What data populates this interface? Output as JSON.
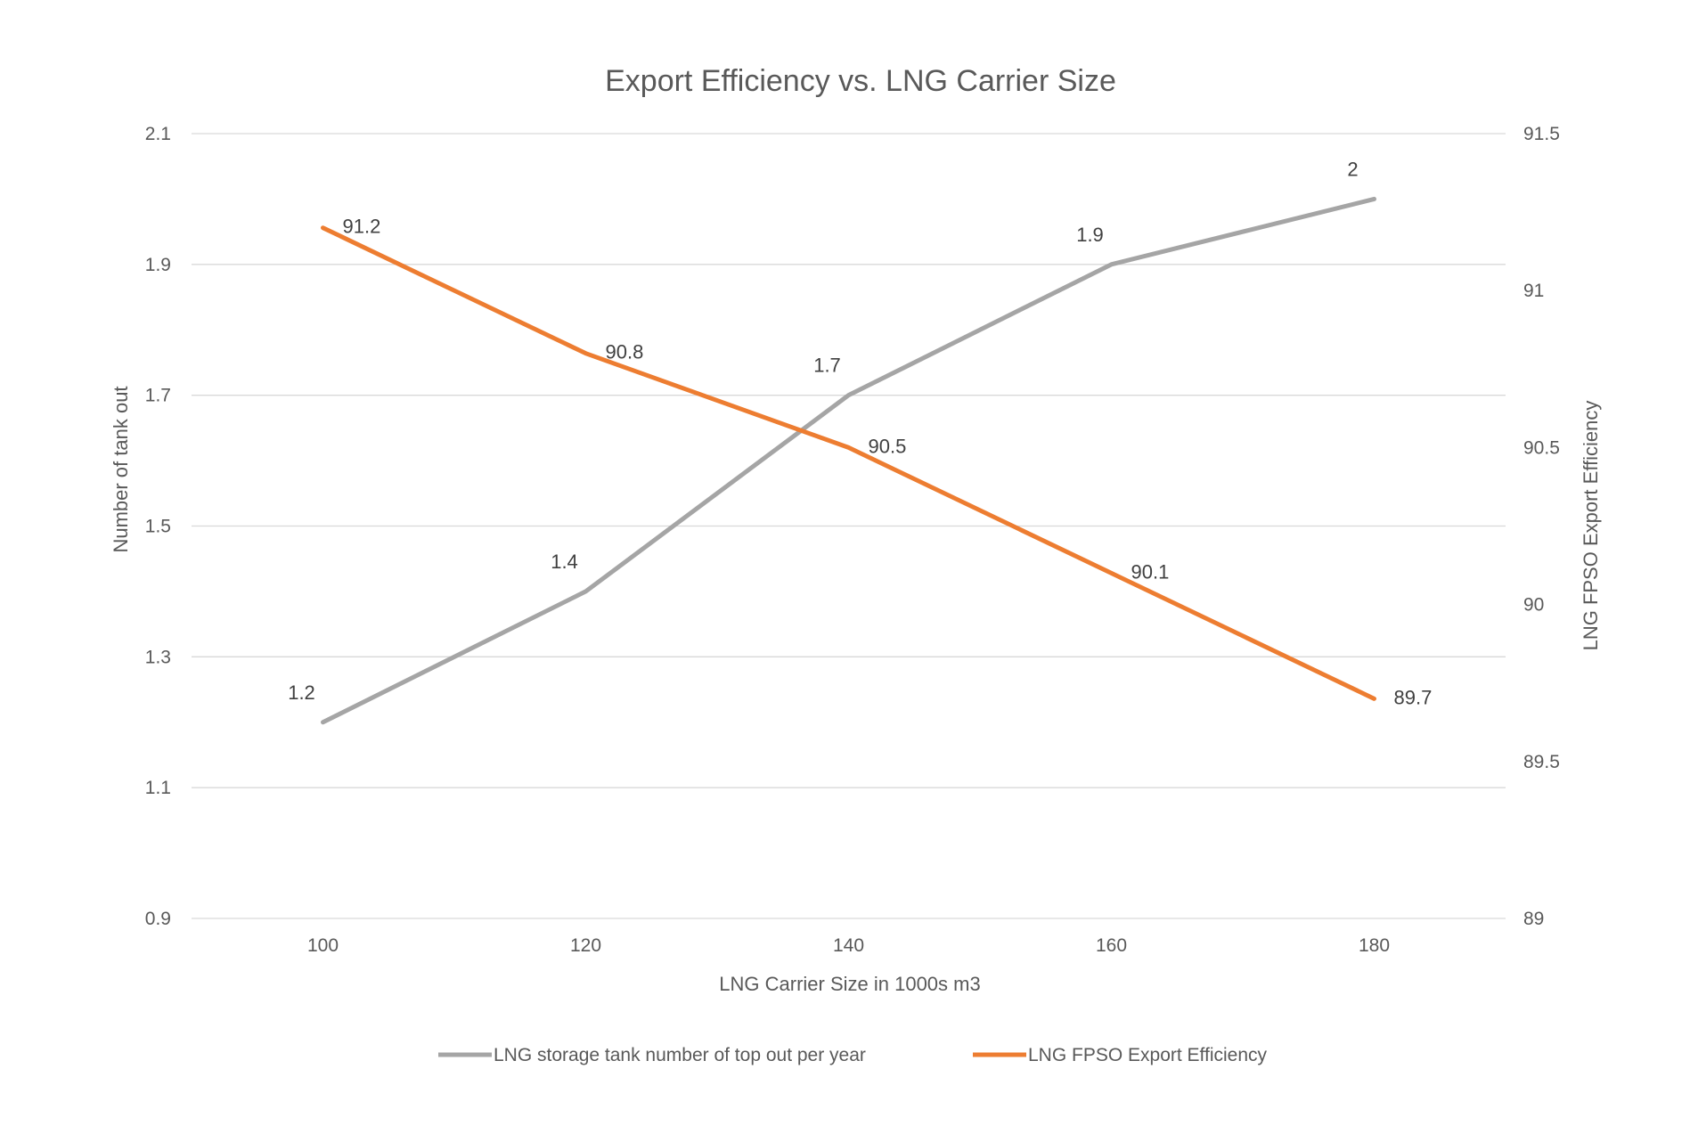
{
  "chart_data": {
    "type": "line",
    "title": "Export Efficiency vs. LNG Carrier Size",
    "xlabel": "LNG Carrier Size in 1000s m3",
    "ylabel": "Number of tank out",
    "y2label": "LNG FPSO Export Efficiency",
    "x": [
      100,
      120,
      140,
      160,
      180
    ],
    "ylim": [
      0.9,
      2.1
    ],
    "yticks": [
      0.9,
      1.1,
      1.3,
      1.5,
      1.7,
      1.9,
      2.1
    ],
    "y2lim": [
      89,
      91.5
    ],
    "y2ticks": [
      89,
      89.5,
      90,
      90.5,
      91,
      91.5
    ],
    "grid": true,
    "legend_position": "bottom",
    "series": [
      {
        "name": "LNG storage tank number of top out per year",
        "axis": "left",
        "color": "#a5a5a5",
        "values": [
          1.2,
          1.4,
          1.7,
          1.9,
          2
        ],
        "labels": [
          "1.2",
          "1.4",
          "1.7",
          "1.9",
          "2"
        ]
      },
      {
        "name": "LNG FPSO Export Efficiency",
        "axis": "right",
        "color": "#ed7d31",
        "values": [
          91.2,
          90.8,
          90.5,
          90.1,
          89.7
        ],
        "labels": [
          "91.2",
          "90.8",
          "90.5",
          "90.1",
          "89.7"
        ]
      }
    ]
  }
}
